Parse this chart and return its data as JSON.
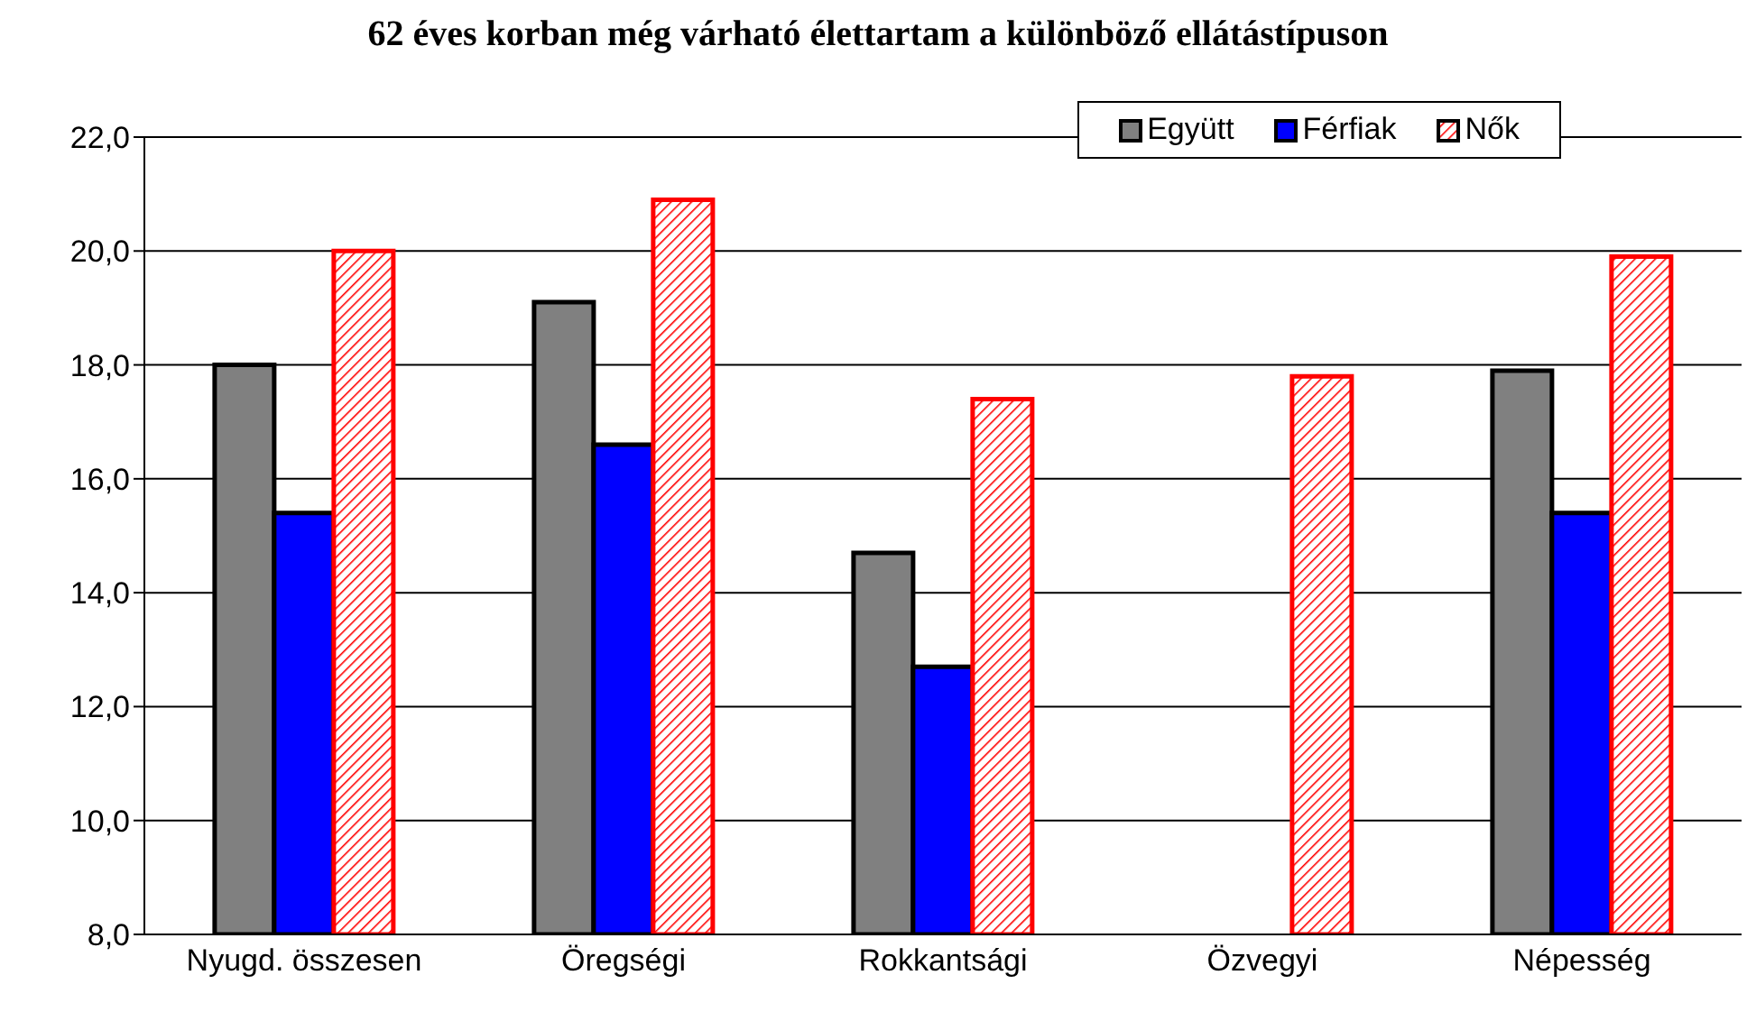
{
  "chart_data": {
    "type": "bar",
    "title": "62 éves korban még várható élettartam a különböző ellátástípuson",
    "categories": [
      "Nyugd. összesen",
      "Öregségi",
      "Rokkantsági",
      "Özvegyi",
      "Népesség"
    ],
    "series": [
      {
        "name": "Együtt",
        "color": "#808080",
        "values": [
          18.0,
          19.1,
          14.7,
          null,
          17.9
        ]
      },
      {
        "name": "Férfiak",
        "color": "#0000ff",
        "values": [
          15.4,
          16.6,
          12.7,
          null,
          15.4
        ]
      },
      {
        "name": "Nők",
        "color": "#ff0000",
        "values": [
          20.0,
          20.9,
          17.4,
          17.8,
          19.9
        ]
      }
    ],
    "ylim": [
      8,
      22
    ],
    "yticks": [
      {
        "value": 8,
        "label": "8,0"
      },
      {
        "value": 10,
        "label": "10,0"
      },
      {
        "value": 12,
        "label": "12,0"
      },
      {
        "value": 14,
        "label": "14,0"
      },
      {
        "value": 16,
        "label": "16,0"
      },
      {
        "value": 18,
        "label": "18,0"
      },
      {
        "value": 20,
        "label": "20,0"
      },
      {
        "value": 22,
        "label": "22,0"
      }
    ],
    "grid": "y",
    "legend": "top right"
  }
}
